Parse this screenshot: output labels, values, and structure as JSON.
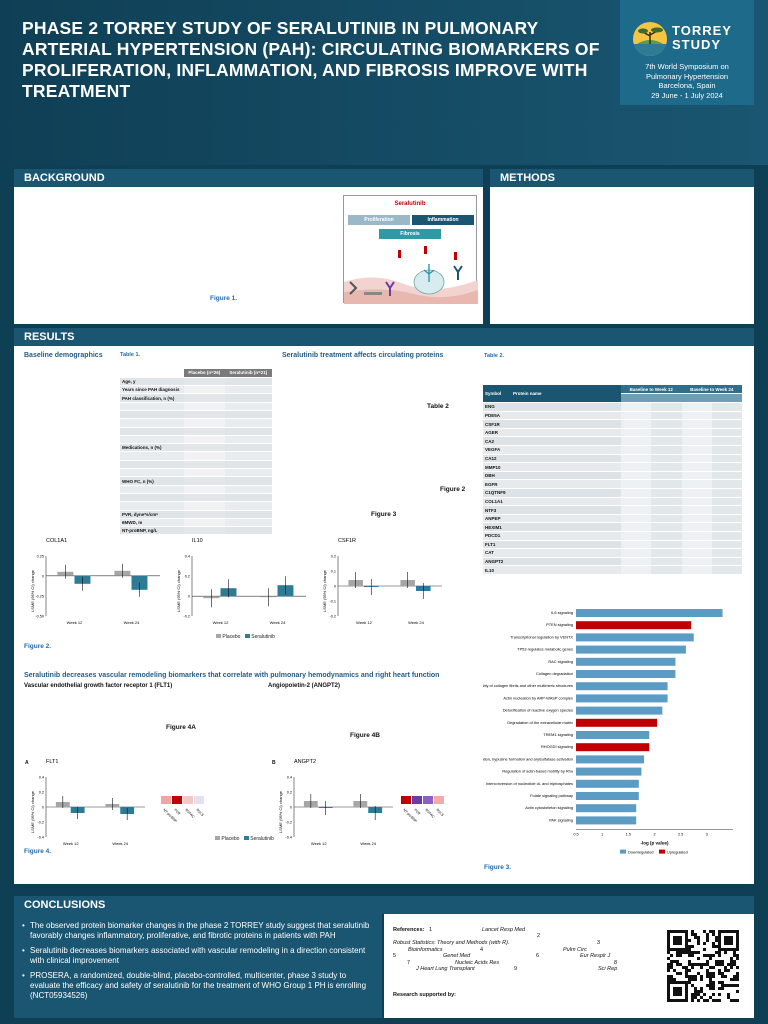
{
  "header": {
    "title": "PHASE 2 TORREY STUDY OF SERALUTINIB IN PULMONARY ARTERIAL HYPERTENSION (PAH): CIRCULATING BIOMARKERS OF PROLIFERATION, INFLAMMATION, AND FIBROSIS IMPROVE WITH TREATMENT",
    "logo_line1": "TORREY",
    "logo_line2": "STUDY",
    "conference": [
      "7th World Symposium on",
      "Pulmonary Hypertension",
      "Barcelona, Spain",
      "29 June - 1 July 2024"
    ]
  },
  "sections": {
    "background": "BACKGROUND",
    "methods": "METHODS",
    "results": "RESULTS",
    "conclusions": "CONCLUSIONS"
  },
  "figure1": {
    "drug": "Seralutinib",
    "proliferation": "Proliferation",
    "inflammation": "Inflammation",
    "fibrosis": "Fibrosis",
    "caption": "Figure 1."
  },
  "results": {
    "baseline_title": "Baseline demographics",
    "table1_caption": "Table 1.",
    "table1_header": [
      "Placebo (n=26)",
      "Seralutinib (n=21)"
    ],
    "table1_rows": [
      "Age, y",
      "Years since PAH diagnosis",
      "PAH classification, n (%)",
      "",
      "",
      "",
      "",
      "",
      "Medications, n (%)",
      "",
      "",
      "",
      "WHO FC, n (%)",
      "",
      "",
      "",
      "PVR, dyne*s/cm⁵",
      "6MWD, m",
      "NT-proBNP, ng/L"
    ],
    "serum_title": "Seralutinib treatment affects circulating proteins",
    "table2_caption": "Table 2.",
    "table2_label": "Table 2",
    "figure2_label": "Figure 2",
    "figure3_label": "Figure 3",
    "table2_header": {
      "symbol": "Symbol",
      "protein": "Protein name",
      "wk12": "Baseline to Week 12",
      "wk24": "Baseline to Week 24"
    },
    "table2_rows": [
      "ENG",
      "PDE5A",
      "CSF1R",
      "AGER",
      "CA2",
      "VEGFA",
      "CA12",
      "MMP10",
      "DBH",
      "EGFR",
      "C1QTNF9",
      "COL1A1",
      "NTF3",
      "ANPEP",
      "HEXIM1",
      "PDCD1",
      "FLT1",
      "CAT",
      "ANGPT2",
      "IL10"
    ],
    "figure2_caption": "Figure 2.",
    "vascular_title": "Seralutinib decreases vascular remodeling biomarkers that correlate with pulmonary hemodynamics and right heart function",
    "flt1_title": "Vascular endothelial growth factor receptor 1 (FLT1)",
    "angpt2_title": "Angiopoietin-2 (ANGPT2)",
    "figure4a_label": "Figure 4A",
    "figure4b_label": "Figure 4B",
    "figure4_caption": "Figure 4.",
    "figure3_caption": "Figure 3.",
    "panel_a": "A",
    "panel_b": "B"
  },
  "small_charts": [
    {
      "title": "COL1A1",
      "ylabel": "LSME (95% CI) change",
      "weeks": [
        "Week 12",
        "Week 24"
      ],
      "ticks": [
        "0.25",
        "0",
        "-0.25",
        "-0.50"
      ]
    },
    {
      "title": "IL10",
      "ylabel": "LSME (95% CI) change",
      "weeks": [
        "Week 12",
        "Week 24"
      ],
      "ticks": [
        "0.4",
        "0.2",
        "0",
        "-0.2"
      ]
    },
    {
      "title": "CSF1R",
      "ylabel": "LSME (95% CI) change",
      "weeks": [
        "Week 12",
        "Week 24"
      ],
      "ticks": [
        "0.2",
        "0.1",
        "0",
        "-0.1",
        "-0.2"
      ]
    },
    {
      "title": "FLT1",
      "ylabel": "LSME (95% CI) change",
      "weeks": [
        "Week 12",
        "Week 24"
      ],
      "ticks": [
        "0.4",
        "0.2",
        "0",
        "-0.2",
        "-0.4"
      ]
    },
    {
      "title": "ANGPT2",
      "ylabel": "LSME (95% CI) change",
      "weeks": [
        "Week 12",
        "Week 24"
      ],
      "ticks": [
        "0.4",
        "0.2",
        "0",
        "-0.2",
        "-0.4"
      ]
    }
  ],
  "legend": {
    "placebo": "Placebo",
    "seralutinib": "Seralutinib",
    "downregulated": "Downregulated",
    "upregulated": "Upregulated"
  },
  "flt1_corr": [
    "NT-proBNP",
    "PVR",
    "RVFAC",
    "RVLS"
  ],
  "angpt2_corr": [
    "NT-proBNP",
    "PVR",
    "RVFAC",
    "RVLS"
  ],
  "pathway_chart": {
    "xlabel": "-log (p value)",
    "ticks": [
      "0.5",
      "1",
      "1.5",
      "2",
      "2.5",
      "3"
    ],
    "labels": [
      "IL6 signaling",
      "PTEN signaling",
      "Transcriptional regulation by VENTX",
      "TP53 regulates metabolic genes",
      "RAC signaling",
      "Collagen degradation",
      "Assembly of collagen fibrils and other multimeric structures",
      "Actin nucleation by ARP-WASP complex",
      "Detoxification of reactive oxygen species",
      "Degradation of the extracellular matrix",
      "TREM1 signaling",
      "RHOGDI signaling",
      "Gamma carboxylation, hypusine formation and arylsulfatase activation",
      "Regulation of actin-based motility by Rho",
      "Interconversion of nucleotide di- and triphosphates",
      "Folate signaling pathway",
      "Actin cytoskeleton signaling",
      "PAK signaling"
    ],
    "values": [
      3.3,
      2.7,
      2.75,
      2.6,
      2.4,
      2.4,
      2.25,
      2.25,
      2.15,
      2.05,
      1.9,
      1.9,
      1.8,
      1.75,
      1.7,
      1.7,
      1.65,
      1.65
    ],
    "up": [
      false,
      true,
      false,
      false,
      false,
      false,
      false,
      false,
      false,
      true,
      false,
      true,
      false,
      false,
      false,
      false,
      false,
      false
    ],
    "color_down": "#5b9bc4",
    "color_up": "#c00000"
  },
  "conclusions": [
    "The observed protein biomarker changes in the phase 2 TORREY study suggest that seralutinib favorably changes inflammatory, proliferative, and fibrotic proteins in patients with PAH",
    "Seralutinib decreases biomarkers associated with vascular remodeling in a direction consistent with clinical improvement",
    "PROSERA, a randomized, double-blind, placebo-controlled, multicenter, phase 3 study to evaluate the efficacy and safety of seralutinib for the treatment of WHO Group 1 PH is enrolling (NCT05934526)"
  ],
  "references": {
    "label": "References:",
    "items": [
      "1",
      "Lancet Resp Med",
      "2",
      "Robust Statistics: Theory and Methods (with R).",
      "3",
      "Bioinformatics",
      "4",
      "Pulm Circ",
      "5",
      "Genet Med",
      "6",
      "Eur Respir J",
      "7",
      "Nucleic Acids Res",
      "8",
      "J Heart Lung Transplant",
      "9",
      "Sci Rep"
    ],
    "support": "Research supported by:"
  },
  "colors": {
    "navy": "#0f3f55",
    "bar": "#1a5671",
    "placebo": "#a6a6a6",
    "seralutinib": "#2e7b96",
    "accent_red": "#c00000"
  }
}
